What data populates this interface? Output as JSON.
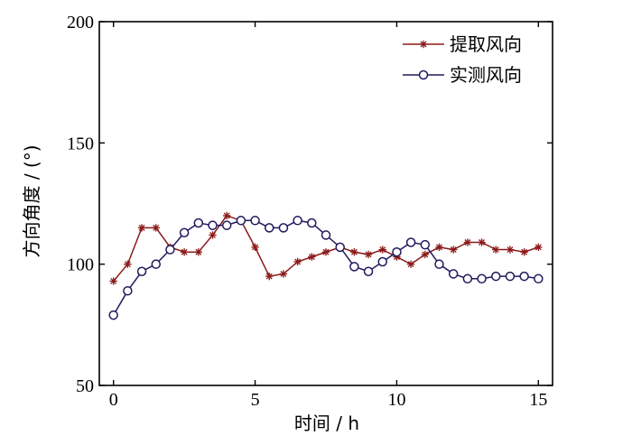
{
  "chart_data": {
    "type": "line",
    "xlabel": "时间 / h",
    "ylabel": "方向角度 / (°)",
    "xlim": [
      -0.5,
      15.5
    ],
    "ylim": [
      50,
      200
    ],
    "xticks": [
      0,
      5,
      10,
      15
    ],
    "yticks": [
      50,
      100,
      150,
      200
    ],
    "grid": false,
    "legend_position": "top-right",
    "series": [
      {
        "name": "提取风向",
        "color": "#8B1A1A",
        "marker": "asterisk",
        "x": [
          0,
          0.5,
          1,
          1.5,
          2,
          2.5,
          3,
          3.5,
          4,
          4.5,
          5,
          5.5,
          6,
          6.5,
          7,
          7.5,
          8,
          8.5,
          9,
          9.5,
          10,
          10.5,
          11,
          11.5,
          12,
          12.5,
          13,
          13.5,
          14,
          14.5,
          15
        ],
        "y": [
          93,
          100,
          115,
          115,
          107,
          105,
          105,
          112,
          120,
          118,
          107,
          95,
          96,
          101,
          103,
          105,
          107,
          105,
          104,
          106,
          103,
          100,
          104,
          107,
          106,
          109,
          109,
          106,
          106,
          105,
          107
        ]
      },
      {
        "name": "实测风向",
        "color": "#1F1A5C",
        "marker": "circle",
        "x": [
          0,
          0.5,
          1,
          1.5,
          2,
          2.5,
          3,
          3.5,
          4,
          4.5,
          5,
          5.5,
          6,
          6.5,
          7,
          7.5,
          8,
          8.5,
          9,
          9.5,
          10,
          10.5,
          11,
          11.5,
          12,
          12.5,
          13,
          13.5,
          14,
          14.5,
          15
        ],
        "y": [
          79,
          89,
          97,
          100,
          106,
          113,
          117,
          116,
          116,
          118,
          118,
          115,
          115,
          118,
          117,
          112,
          107,
          99,
          97,
          101,
          105,
          109,
          108,
          100,
          96,
          94,
          94,
          95,
          95,
          95,
          94
        ]
      }
    ]
  }
}
